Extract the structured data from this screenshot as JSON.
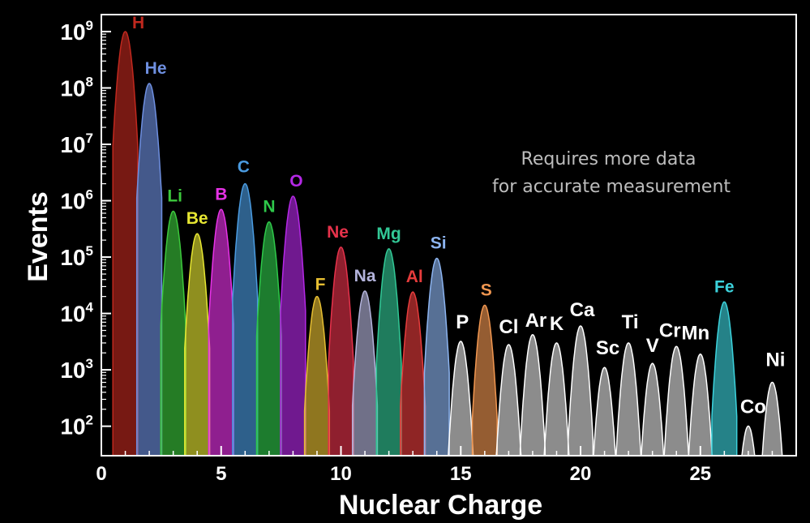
{
  "chart_data": {
    "type": "area",
    "xlabel": "Nuclear Charge",
    "ylabel": "Events",
    "xlim": [
      0,
      29
    ],
    "ylim": [
      30,
      2000000000
    ],
    "y_scale": "log",
    "x_ticks": [
      0,
      5,
      10,
      15,
      20,
      25
    ],
    "y_ticks": [
      {
        "base": "10",
        "exp": "2",
        "value": 100
      },
      {
        "base": "10",
        "exp": "3",
        "value": 1000
      },
      {
        "base": "10",
        "exp": "4",
        "value": 10000
      },
      {
        "base": "10",
        "exp": "5",
        "value": 100000
      },
      {
        "base": "10",
        "exp": "6",
        "value": 1000000
      },
      {
        "base": "10",
        "exp": "7",
        "value": 10000000
      },
      {
        "base": "10",
        "exp": "8",
        "value": 100000000
      },
      {
        "base": "10",
        "exp": "9",
        "value": 1000000000
      }
    ],
    "annotation": [
      "Requires more data",
      "for accurate measurement"
    ],
    "series": [
      {
        "label": "H",
        "z": 1,
        "peak": 1000000000,
        "color": "#c0281e"
      },
      {
        "label": "He",
        "z": 2,
        "peak": 120000000,
        "color": "#6e8fe0"
      },
      {
        "label": "Li",
        "z": 3,
        "peak": 650000,
        "color": "#3cc83c"
      },
      {
        "label": "Be",
        "z": 4,
        "peak": 260000,
        "color": "#e6e632"
      },
      {
        "label": "B",
        "z": 5,
        "peak": 700000,
        "color": "#e632e6"
      },
      {
        "label": "C",
        "z": 6,
        "peak": 2000000,
        "color": "#4a9be0"
      },
      {
        "label": "N",
        "z": 7,
        "peak": 420000,
        "color": "#2ec84a"
      },
      {
        "label": "O",
        "z": 8,
        "peak": 1200000,
        "color": "#b428e6"
      },
      {
        "label": "F",
        "z": 9,
        "peak": 20000,
        "color": "#e6be32"
      },
      {
        "label": "Ne",
        "z": 10,
        "peak": 150000,
        "color": "#e6324b"
      },
      {
        "label": "Na",
        "z": 11,
        "peak": 25000,
        "color": "#b4b4dc"
      },
      {
        "label": "Mg",
        "z": 12,
        "peak": 140000,
        "color": "#32c896"
      },
      {
        "label": "Al",
        "z": 13,
        "peak": 24000,
        "color": "#e63c3c"
      },
      {
        "label": "Si",
        "z": 14,
        "peak": 95000,
        "color": "#8cb4f0"
      },
      {
        "label": "P",
        "z": 15,
        "peak": 3200,
        "color": "#ffffff"
      },
      {
        "label": "S",
        "z": 16,
        "peak": 14000,
        "color": "#f09650"
      },
      {
        "label": "Cl",
        "z": 17,
        "peak": 2800,
        "color": "#ffffff"
      },
      {
        "label": "Ar",
        "z": 18,
        "peak": 4200,
        "color": "#ffffff"
      },
      {
        "label": "K",
        "z": 19,
        "peak": 3000,
        "color": "#ffffff"
      },
      {
        "label": "Ca",
        "z": 20,
        "peak": 6000,
        "color": "#ffffff"
      },
      {
        "label": "Sc",
        "z": 21,
        "peak": 1100,
        "color": "#ffffff"
      },
      {
        "label": "Ti",
        "z": 22,
        "peak": 3000,
        "color": "#ffffff"
      },
      {
        "label": "V",
        "z": 23,
        "peak": 1300,
        "color": "#ffffff"
      },
      {
        "label": "Cr",
        "z": 24,
        "peak": 2600,
        "color": "#ffffff"
      },
      {
        "label": "Mn",
        "z": 25,
        "peak": 1900,
        "color": "#ffffff"
      },
      {
        "label": "Fe",
        "z": 26,
        "peak": 16000,
        "color": "#3cd2dc"
      },
      {
        "label": "Co",
        "z": 27,
        "peak": 100,
        "color": "#ffffff"
      },
      {
        "label": "Ni",
        "z": 28,
        "peak": 600,
        "color": "#ffffff"
      }
    ]
  }
}
